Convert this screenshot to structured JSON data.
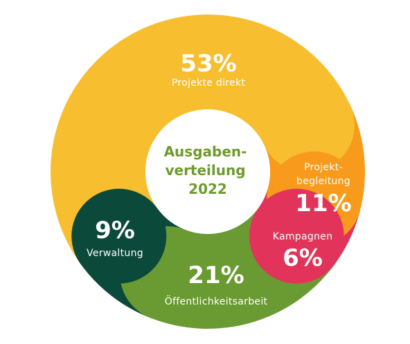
{
  "chart_data": {
    "type": "pie",
    "center_title": [
      "Ausgaben-",
      "verteilung",
      "2022"
    ],
    "slices": [
      {
        "category": "Projekte direkt",
        "category_lines": [
          "Projekte direkt"
        ],
        "value": 53,
        "value_label": "53%",
        "color": "#f7be2f"
      },
      {
        "category": "Projekt-begleitung",
        "category_lines": [
          "Projekt-",
          "begleitung"
        ],
        "value": 11,
        "value_label": "11%",
        "color": "#f89b1c"
      },
      {
        "category": "Kampagnen",
        "category_lines": [
          "Kampagnen"
        ],
        "value": 6,
        "value_label": "6%",
        "color": "#e2345a"
      },
      {
        "category": "Öffentlichkeitsarbeit",
        "category_lines": [
          "Öffentlichkeitsarbeit"
        ],
        "value": 21,
        "value_label": "21%",
        "color": "#6a9b32"
      },
      {
        "category": "Verwaltung",
        "category_lines": [
          "Verwaltung"
        ],
        "value": 9,
        "value_label": "9%",
        "color": "#0b4a3a"
      }
    ]
  }
}
